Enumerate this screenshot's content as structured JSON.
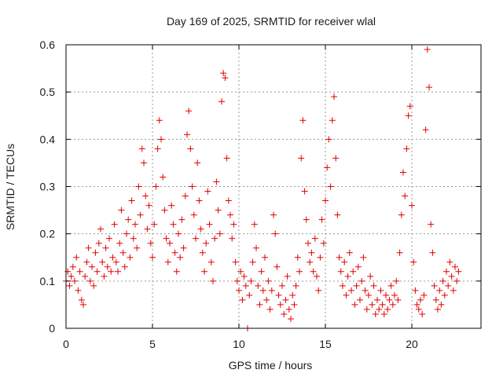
{
  "chart_data": {
    "type": "scatter",
    "title": "Day 169 of 2025, SRMTID for receiver wlal",
    "xlabel": "GPS time / hours",
    "ylabel": "SRMTID / TECUs",
    "xlim": [
      0,
      24
    ],
    "ylim": [
      0,
      0.6
    ],
    "xticks": [
      0,
      5,
      10,
      15,
      20
    ],
    "xtick_labels": [
      "0",
      "5",
      "10",
      "15",
      "20"
    ],
    "yticks": [
      0,
      0.1,
      0.2,
      0.3,
      0.4,
      0.5,
      0.6
    ],
    "ytick_labels": [
      "0",
      "0.1",
      "0.2",
      "0.3",
      "0.4",
      "0.5",
      "0.6"
    ],
    "grid": true,
    "marker": "+",
    "marker_color": "#e00000",
    "series": [
      {
        "name": "SRMTID",
        "points": [
          [
            0.0,
            0.1
          ],
          [
            0.1,
            0.12
          ],
          [
            0.2,
            0.09
          ],
          [
            0.3,
            0.11
          ],
          [
            0.4,
            0.13
          ],
          [
            0.5,
            0.1
          ],
          [
            0.6,
            0.15
          ],
          [
            0.7,
            0.08
          ],
          [
            0.8,
            0.12
          ],
          [
            0.9,
            0.06
          ],
          [
            1.0,
            0.05
          ],
          [
            1.1,
            0.11
          ],
          [
            1.2,
            0.14
          ],
          [
            1.3,
            0.17
          ],
          [
            1.4,
            0.1
          ],
          [
            1.5,
            0.13
          ],
          [
            1.6,
            0.09
          ],
          [
            1.7,
            0.16
          ],
          [
            1.8,
            0.12
          ],
          [
            1.9,
            0.18
          ],
          [
            2.0,
            0.21
          ],
          [
            2.1,
            0.14
          ],
          [
            2.2,
            0.11
          ],
          [
            2.3,
            0.17
          ],
          [
            2.4,
            0.13
          ],
          [
            2.5,
            0.19
          ],
          [
            2.6,
            0.12
          ],
          [
            2.7,
            0.15
          ],
          [
            2.8,
            0.22
          ],
          [
            2.9,
            0.14
          ],
          [
            3.0,
            0.12
          ],
          [
            3.1,
            0.18
          ],
          [
            3.2,
            0.25
          ],
          [
            3.3,
            0.16
          ],
          [
            3.4,
            0.13
          ],
          [
            3.5,
            0.2
          ],
          [
            3.6,
            0.23
          ],
          [
            3.7,
            0.15
          ],
          [
            3.8,
            0.27
          ],
          [
            3.9,
            0.19
          ],
          [
            4.0,
            0.22
          ],
          [
            4.1,
            0.17
          ],
          [
            4.2,
            0.3
          ],
          [
            4.3,
            0.24
          ],
          [
            4.4,
            0.38
          ],
          [
            4.5,
            0.35
          ],
          [
            4.6,
            0.28
          ],
          [
            4.7,
            0.21
          ],
          [
            4.8,
            0.26
          ],
          [
            4.9,
            0.18
          ],
          [
            5.0,
            0.15
          ],
          [
            5.1,
            0.22
          ],
          [
            5.2,
            0.3
          ],
          [
            5.3,
            0.38
          ],
          [
            5.4,
            0.44
          ],
          [
            5.5,
            0.4
          ],
          [
            5.6,
            0.32
          ],
          [
            5.7,
            0.25
          ],
          [
            5.8,
            0.19
          ],
          [
            5.9,
            0.14
          ],
          [
            6.0,
            0.18
          ],
          [
            6.1,
            0.26
          ],
          [
            6.2,
            0.22
          ],
          [
            6.3,
            0.16
          ],
          [
            6.4,
            0.12
          ],
          [
            6.5,
            0.2
          ],
          [
            6.6,
            0.15
          ],
          [
            6.7,
            0.23
          ],
          [
            6.8,
            0.17
          ],
          [
            6.9,
            0.28
          ],
          [
            7.0,
            0.41
          ],
          [
            7.1,
            0.46
          ],
          [
            7.2,
            0.38
          ],
          [
            7.3,
            0.3
          ],
          [
            7.4,
            0.24
          ],
          [
            7.5,
            0.19
          ],
          [
            7.6,
            0.35
          ],
          [
            7.7,
            0.27
          ],
          [
            7.8,
            0.21
          ],
          [
            7.9,
            0.16
          ],
          [
            8.0,
            0.12
          ],
          [
            8.1,
            0.18
          ],
          [
            8.2,
            0.29
          ],
          [
            8.3,
            0.22
          ],
          [
            8.4,
            0.14
          ],
          [
            8.5,
            0.1
          ],
          [
            8.6,
            0.19
          ],
          [
            8.7,
            0.31
          ],
          [
            8.8,
            0.25
          ],
          [
            8.9,
            0.2
          ],
          [
            9.0,
            0.48
          ],
          [
            9.1,
            0.54
          ],
          [
            9.2,
            0.53
          ],
          [
            9.3,
            0.36
          ],
          [
            9.4,
            0.27
          ],
          [
            9.5,
            0.24
          ],
          [
            9.6,
            0.19
          ],
          [
            9.7,
            0.22
          ],
          [
            9.8,
            0.14
          ],
          [
            9.9,
            0.1
          ],
          [
            10.0,
            0.08
          ],
          [
            10.1,
            0.12
          ],
          [
            10.2,
            0.06
          ],
          [
            10.3,
            0.11
          ],
          [
            10.4,
            0.09
          ],
          [
            10.5,
            0.0
          ],
          [
            10.6,
            0.07
          ],
          [
            10.7,
            0.1
          ],
          [
            10.8,
            0.14
          ],
          [
            10.9,
            0.22
          ],
          [
            11.0,
            0.17
          ],
          [
            11.1,
            0.09
          ],
          [
            11.2,
            0.05
          ],
          [
            11.3,
            0.12
          ],
          [
            11.4,
            0.08
          ],
          [
            11.5,
            0.15
          ],
          [
            11.6,
            0.06
          ],
          [
            11.7,
            0.1
          ],
          [
            11.8,
            0.04
          ],
          [
            11.9,
            0.08
          ],
          [
            12.0,
            0.24
          ],
          [
            12.1,
            0.2
          ],
          [
            12.2,
            0.13
          ],
          [
            12.3,
            0.07
          ],
          [
            12.4,
            0.05
          ],
          [
            12.5,
            0.09
          ],
          [
            12.6,
            0.03
          ],
          [
            12.7,
            0.06
          ],
          [
            12.8,
            0.11
          ],
          [
            12.9,
            0.04
          ],
          [
            13.0,
            0.02
          ],
          [
            13.1,
            0.07
          ],
          [
            13.2,
            0.05
          ],
          [
            13.3,
            0.09
          ],
          [
            13.4,
            0.15
          ],
          [
            13.5,
            0.12
          ],
          [
            13.6,
            0.36
          ],
          [
            13.7,
            0.44
          ],
          [
            13.8,
            0.29
          ],
          [
            13.9,
            0.23
          ],
          [
            14.0,
            0.18
          ],
          [
            14.1,
            0.14
          ],
          [
            14.2,
            0.16
          ],
          [
            14.3,
            0.12
          ],
          [
            14.4,
            0.19
          ],
          [
            14.5,
            0.11
          ],
          [
            14.6,
            0.08
          ],
          [
            14.7,
            0.15
          ],
          [
            14.8,
            0.23
          ],
          [
            14.9,
            0.18
          ],
          [
            15.0,
            0.27
          ],
          [
            15.1,
            0.34
          ],
          [
            15.2,
            0.4
          ],
          [
            15.3,
            0.3
          ],
          [
            15.4,
            0.44
          ],
          [
            15.5,
            0.49
          ],
          [
            15.6,
            0.36
          ],
          [
            15.7,
            0.24
          ],
          [
            15.8,
            0.15
          ],
          [
            15.9,
            0.12
          ],
          [
            16.0,
            0.09
          ],
          [
            16.1,
            0.14
          ],
          [
            16.2,
            0.07
          ],
          [
            16.3,
            0.11
          ],
          [
            16.4,
            0.16
          ],
          [
            16.5,
            0.08
          ],
          [
            16.6,
            0.12
          ],
          [
            16.7,
            0.05
          ],
          [
            16.8,
            0.09
          ],
          [
            16.9,
            0.13
          ],
          [
            17.0,
            0.06
          ],
          [
            17.1,
            0.1
          ],
          [
            17.2,
            0.15
          ],
          [
            17.3,
            0.08
          ],
          [
            17.4,
            0.04
          ],
          [
            17.5,
            0.07
          ],
          [
            17.6,
            0.11
          ],
          [
            17.7,
            0.05
          ],
          [
            17.8,
            0.09
          ],
          [
            17.9,
            0.03
          ],
          [
            18.0,
            0.06
          ],
          [
            18.1,
            0.04
          ],
          [
            18.2,
            0.08
          ],
          [
            18.3,
            0.05
          ],
          [
            18.4,
            0.03
          ],
          [
            18.5,
            0.07
          ],
          [
            18.6,
            0.04
          ],
          [
            18.7,
            0.06
          ],
          [
            18.8,
            0.09
          ],
          [
            18.9,
            0.05
          ],
          [
            19.0,
            0.07
          ],
          [
            19.1,
            0.1
          ],
          [
            19.2,
            0.06
          ],
          [
            19.3,
            0.16
          ],
          [
            19.4,
            0.24
          ],
          [
            19.5,
            0.33
          ],
          [
            19.6,
            0.28
          ],
          [
            19.7,
            0.38
          ],
          [
            19.8,
            0.45
          ],
          [
            19.9,
            0.47
          ],
          [
            20.0,
            0.26
          ],
          [
            20.1,
            0.14
          ],
          [
            20.2,
            0.08
          ],
          [
            20.3,
            0.05
          ],
          [
            20.4,
            0.04
          ],
          [
            20.5,
            0.06
          ],
          [
            20.6,
            0.03
          ],
          [
            20.7,
            0.07
          ],
          [
            20.8,
            0.42
          ],
          [
            20.9,
            0.59
          ],
          [
            21.0,
            0.51
          ],
          [
            21.1,
            0.22
          ],
          [
            21.2,
            0.16
          ],
          [
            21.3,
            0.09
          ],
          [
            21.4,
            0.06
          ],
          [
            21.5,
            0.04
          ],
          [
            21.6,
            0.08
          ],
          [
            21.7,
            0.05
          ],
          [
            21.8,
            0.1
          ],
          [
            21.9,
            0.07
          ],
          [
            22.0,
            0.12
          ],
          [
            22.1,
            0.09
          ],
          [
            22.2,
            0.14
          ],
          [
            22.3,
            0.11
          ],
          [
            22.4,
            0.08
          ],
          [
            22.5,
            0.13
          ],
          [
            22.6,
            0.1
          ],
          [
            22.7,
            0.12
          ]
        ]
      }
    ]
  }
}
